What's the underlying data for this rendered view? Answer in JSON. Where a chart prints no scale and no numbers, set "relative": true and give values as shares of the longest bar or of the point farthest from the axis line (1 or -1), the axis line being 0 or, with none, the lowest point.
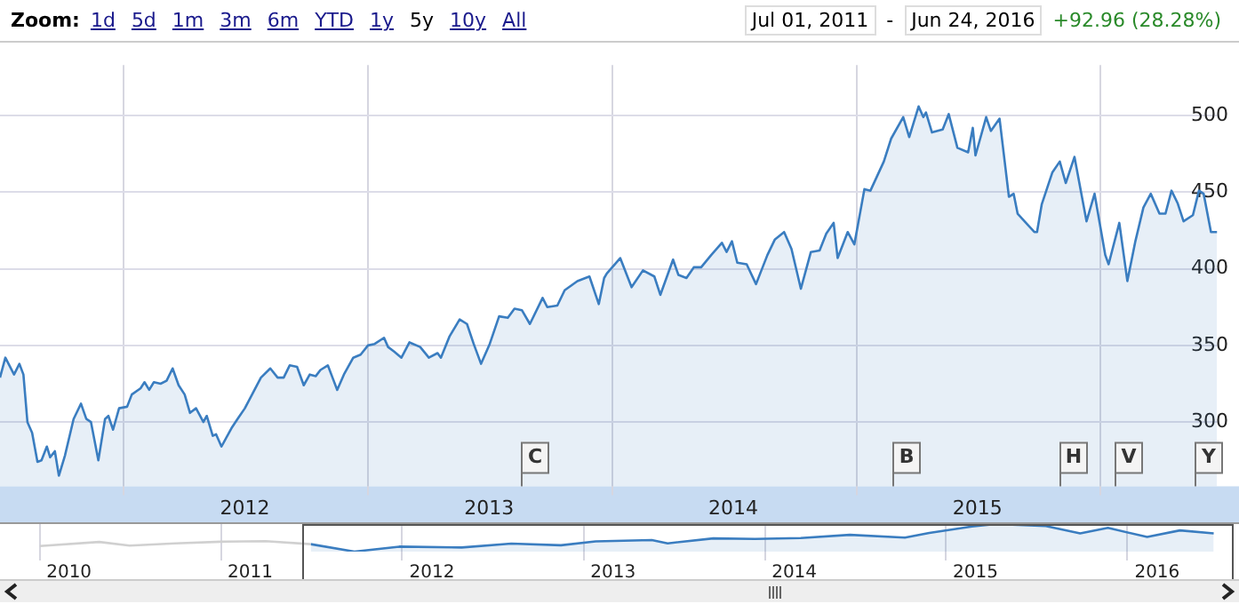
{
  "chart_data": [
    {
      "type": "area",
      "color": "#3a7dc0",
      "marker": "none",
      "grid": true,
      "xlim": [
        "2011-07-01",
        "2016-06-24"
      ],
      "xticks": [
        {
          "value": "2012-01-01",
          "label": null
        },
        {
          "value": "2012-07-01",
          "label": "2012"
        },
        {
          "value": "2013-01-01",
          "label": null
        },
        {
          "value": "2013-07-01",
          "label": "2013"
        },
        {
          "value": "2014-01-01",
          "label": null
        },
        {
          "value": "2014-07-01",
          "label": "2014"
        },
        {
          "value": "2015-01-01",
          "label": null
        },
        {
          "value": "2015-07-01",
          "label": "2015"
        },
        {
          "value": "2016-01-01",
          "label": null
        }
      ],
      "ylim": [
        258,
        533
      ],
      "yticks": [
        300,
        350,
        400,
        450,
        500
      ],
      "x": [
        "2011-07-01",
        "2011-07-09",
        "2011-07-22",
        "2011-07-30",
        "2011-08-05",
        "2011-08-11",
        "2011-08-18",
        "2011-08-26",
        "2011-09-01",
        "2011-09-09",
        "2011-09-14",
        "2011-09-21",
        "2011-09-27",
        "2011-10-06",
        "2011-10-19",
        "2011-10-30",
        "2011-11-07",
        "2011-11-14",
        "2011-11-25",
        "2011-12-05",
        "2011-12-10",
        "2011-12-17",
        "2011-12-26",
        "2012-01-07",
        "2012-01-14",
        "2012-01-27",
        "2012-02-02",
        "2012-02-09",
        "2012-02-16",
        "2012-02-26",
        "2012-03-06",
        "2012-03-15",
        "2012-03-24",
        "2012-04-02",
        "2012-04-10",
        "2012-04-19",
        "2012-04-30",
        "2012-05-05",
        "2012-05-14",
        "2012-05-19",
        "2012-05-27",
        "2012-06-11",
        "2012-06-20",
        "2012-07-01",
        "2012-07-25",
        "2012-08-08",
        "2012-08-19",
        "2012-08-28",
        "2012-09-06",
        "2012-09-17",
        "2012-09-27",
        "2012-10-06",
        "2012-10-15",
        "2012-10-22",
        "2012-11-02",
        "2012-11-09",
        "2012-11-16",
        "2012-11-26",
        "2012-12-10",
        "2012-12-21",
        "2013-01-01",
        "2013-01-11",
        "2013-01-25",
        "2013-01-31",
        "2013-02-09",
        "2013-02-20",
        "2013-03-04",
        "2013-03-20",
        "2013-04-02",
        "2013-04-15",
        "2013-04-20",
        "2013-05-03",
        "2013-05-18",
        "2013-05-29",
        "2013-06-08",
        "2013-06-19",
        "2013-07-02",
        "2013-07-16",
        "2013-07-29",
        "2013-08-08",
        "2013-08-19",
        "2013-08-31",
        "2013-09-19",
        "2013-09-26",
        "2013-10-11",
        "2013-10-22",
        "2013-11-10",
        "2013-11-28",
        "2013-12-12",
        "2013-12-20",
        "2013-12-24",
        "2014-01-13",
        "2014-01-30",
        "2014-02-16",
        "2014-03-05",
        "2014-03-14",
        "2014-04-02",
        "2014-04-10",
        "2014-04-22",
        "2014-05-03",
        "2014-05-14",
        "2014-05-29",
        "2014-06-14",
        "2014-06-21",
        "2014-06-29",
        "2014-07-07",
        "2014-07-21",
        "2014-08-04",
        "2014-08-21",
        "2014-09-01",
        "2014-09-15",
        "2014-09-26",
        "2014-10-10",
        "2014-10-25",
        "2014-11-07",
        "2014-11-17",
        "2014-11-28",
        "2014-12-04",
        "2014-12-19",
        "2014-12-29",
        "2015-01-13",
        "2015-01-22",
        "2015-02-11",
        "2015-02-22",
        "2015-03-12",
        "2015-03-21",
        "2015-04-04",
        "2015-04-11",
        "2015-04-15",
        "2015-04-24",
        "2015-05-10",
        "2015-05-19",
        "2015-06-01",
        "2015-06-17",
        "2015-06-24",
        "2015-06-28",
        "2015-07-14",
        "2015-07-21",
        "2015-08-03",
        "2015-08-17",
        "2015-08-24",
        "2015-08-30",
        "2015-09-24",
        "2015-09-28",
        "2015-10-05",
        "2015-10-21",
        "2015-11-01",
        "2015-11-10",
        "2015-11-23",
        "2015-12-11",
        "2015-12-23",
        "2016-01-08",
        "2016-01-13",
        "2016-01-29",
        "2016-02-10",
        "2016-02-22",
        "2016-03-05",
        "2016-03-16",
        "2016-03-29",
        "2016-04-07",
        "2016-04-16",
        "2016-04-25",
        "2016-05-04",
        "2016-05-18",
        "2016-05-27",
        "2016-06-03",
        "2016-06-14",
        "2016-06-23"
      ],
      "values": [
        329,
        342,
        331,
        338,
        331,
        300,
        293,
        274,
        275,
        284,
        277,
        281,
        265,
        278,
        302,
        312,
        302,
        300,
        275,
        302,
        304,
        295,
        309,
        310,
        318,
        322,
        326,
        321,
        326,
        325,
        327,
        335,
        324,
        318,
        306,
        309,
        300,
        304,
        291,
        292,
        284,
        296,
        302,
        309,
        329,
        335,
        329,
        329,
        337,
        336,
        324,
        331,
        330,
        334,
        337,
        329,
        321,
        331,
        342,
        344,
        350,
        351,
        355,
        349,
        346,
        342,
        352,
        349,
        342,
        345,
        342,
        356,
        367,
        364,
        351,
        338,
        351,
        369,
        368,
        374,
        373,
        364,
        381,
        375,
        376,
        386,
        392,
        395,
        377,
        394,
        397,
        407,
        388,
        399,
        395,
        383,
        406,
        396,
        394,
        401,
        401,
        409,
        417,
        411,
        418,
        404,
        403,
        390,
        409,
        419,
        424,
        413,
        387,
        411,
        412,
        423,
        430,
        407,
        424,
        416,
        452,
        451,
        470,
        485,
        499,
        486,
        506,
        499,
        502,
        489,
        491,
        501,
        479,
        476,
        492,
        474,
        499,
        490,
        498,
        447,
        449,
        436,
        424,
        424,
        442,
        463,
        470,
        456,
        473,
        431,
        449,
        409,
        403,
        430,
        392,
        418,
        440,
        449,
        436,
        436,
        451,
        443,
        431,
        435,
        451,
        449,
        424,
        424
      ],
      "annotations": [
        "Zoom:",
        "1d",
        "5d",
        "1m",
        "3m",
        "6m",
        "YTD",
        "1y",
        "5y",
        "10y",
        "All",
        "Jul 01, 2011",
        "-",
        "Jun 24, 2016",
        "+92.96 (28.28%)",
        "C",
        "B",
        "H",
        "V",
        "Y"
      ]
    },
    {
      "type": "line",
      "grid": "x",
      "relative": true,
      "marker": "none",
      "xlim": [
        "2009-10-13",
        "2016-08-13"
      ],
      "xticks": [
        {
          "value": "2010-01-01",
          "label": null
        },
        {
          "value": "2010-03-01",
          "label": "2010"
        },
        {
          "value": "2011-01-01",
          "label": null
        },
        {
          "value": "2011-03-01",
          "label": "2011"
        },
        {
          "value": "2012-01-01",
          "label": null
        },
        {
          "value": "2012-03-01",
          "label": "2012"
        },
        {
          "value": "2013-01-01",
          "label": null
        },
        {
          "value": "2013-03-01",
          "label": "2013"
        },
        {
          "value": "2014-01-01",
          "label": null
        },
        {
          "value": "2014-03-01",
          "label": "2014"
        },
        {
          "value": "2015-01-01",
          "label": null
        },
        {
          "value": "2015-03-01",
          "label": "2015"
        },
        {
          "value": "2016-01-01",
          "label": null
        },
        {
          "value": "2016-03-01",
          "label": "2016"
        }
      ],
      "series": [
        {
          "type": "line",
          "color": "#d0d0d0",
          "x": [
            "2010-01-01",
            "2010-05-01",
            "2010-07-01",
            "2010-10-01",
            "2011-01-01",
            "2011-04-01",
            "2011-07-01"
          ],
          "values": [
            0.2,
            0.35,
            0.22,
            0.3,
            0.36,
            0.38,
            0.27
          ]
        },
        {
          "type": "area",
          "color": "#3a7dc0",
          "x": [
            "2011-07-01",
            "2011-09-27",
            "2011-12-26",
            "2012-04-30",
            "2012-08-08",
            "2012-11-16",
            "2013-01-25",
            "2013-05-18",
            "2013-06-19",
            "2013-09-19",
            "2013-12-12",
            "2014-03-14",
            "2014-06-21",
            "2014-10-10",
            "2014-11-28",
            "2015-02-22",
            "2015-04-11",
            "2015-07-21",
            "2015-09-28",
            "2015-11-23",
            "2016-02-10",
            "2016-04-16",
            "2016-06-23"
          ],
          "values": [
            0.27,
            0,
            0.18,
            0.15,
            0.29,
            0.23,
            0.37,
            0.42,
            0.3,
            0.48,
            0.46,
            0.49,
            0.61,
            0.51,
            0.68,
            0.91,
            1,
            0.93,
            0.66,
            0.86,
            0.53,
            0.77,
            0.66
          ]
        }
      ]
    }
  ]
}
